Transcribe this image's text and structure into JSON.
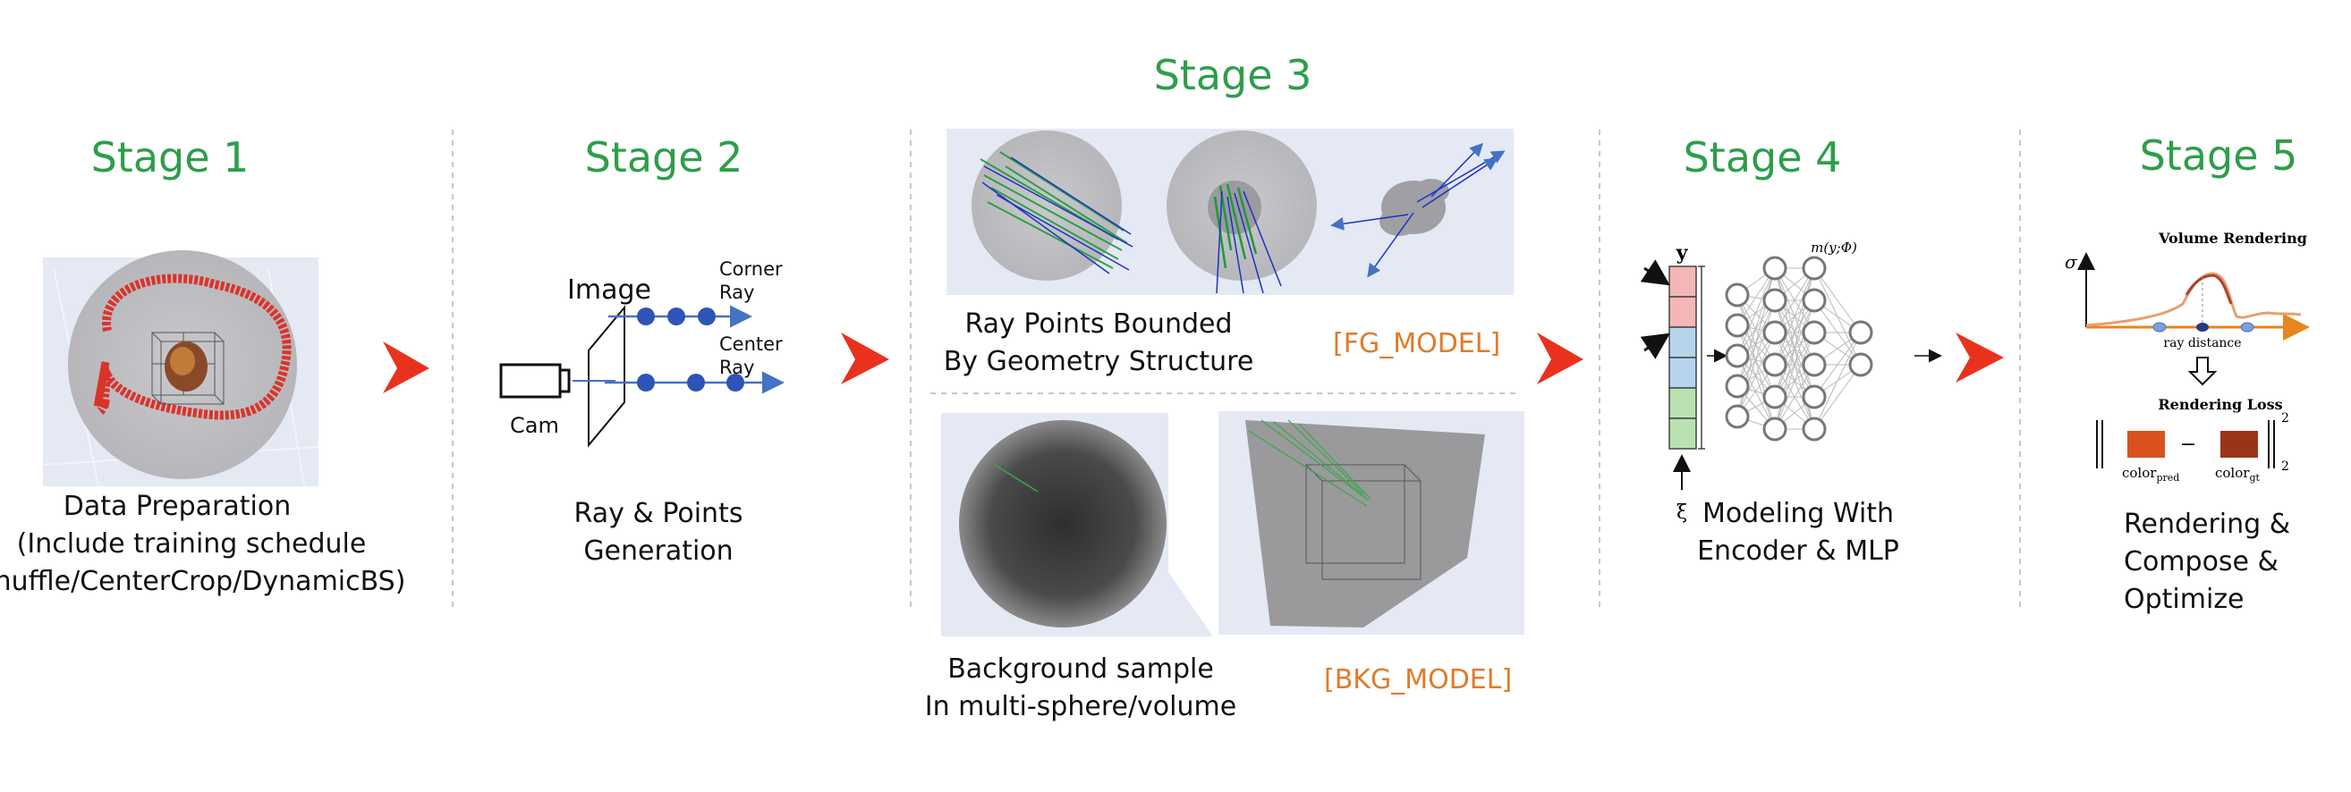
{
  "stages": [
    {
      "title": "Stage 1"
    },
    {
      "title": "Stage 2"
    },
    {
      "title": "Stage 3"
    },
    {
      "title": "Stage 4"
    },
    {
      "title": "Stage 5"
    }
  ],
  "stage1": {
    "caption_lines": [
      "Data Preparation",
      "(Include training schedule",
      "Shuffle/CenterCrop/DynamicBS)"
    ]
  },
  "stage2": {
    "image_label": "Image",
    "cam_label": "Cam",
    "corner_ray_lines": [
      "Corner",
      "Ray"
    ],
    "center_ray_lines": [
      "Center",
      "Ray"
    ],
    "caption_lines": [
      "Ray & Points",
      "Generation"
    ]
  },
  "stage3": {
    "fg_caption_lines": [
      "Ray Points Bounded",
      "By Geometry Structure"
    ],
    "fg_tag": "[FG_MODEL]",
    "bkg_caption_lines": [
      "Background sample",
      "In multi-sphere/volume"
    ],
    "bkg_tag": "[BKG_MODEL]"
  },
  "stage4": {
    "func_label": "m(y;Φ)",
    "y_label": "y",
    "xi_label": "ξ",
    "caption_lines": [
      "Modeling With",
      "Encoder & MLP"
    ]
  },
  "stage5": {
    "volume_title": "Volume Rendering",
    "sigma_label": "σ",
    "ray_distance_label": "ray distance",
    "loss_title": "Rendering Loss",
    "color_pred_base": "color",
    "color_pred_sub": "pred",
    "color_gt_base": "color",
    "color_gt_sub": "gt",
    "minus": "−",
    "norm_sub": "2",
    "norm_sup": "2",
    "caption_lines": [
      "Rendering &",
      "Compose &",
      "Optimize"
    ]
  },
  "colors": {
    "stage_title": "#2e9e4a",
    "tag": "#e07b2a",
    "flow_arrow": "#e8321e",
    "ray_blue": "#4472c4",
    "point_blue": "#2f54b7"
  }
}
